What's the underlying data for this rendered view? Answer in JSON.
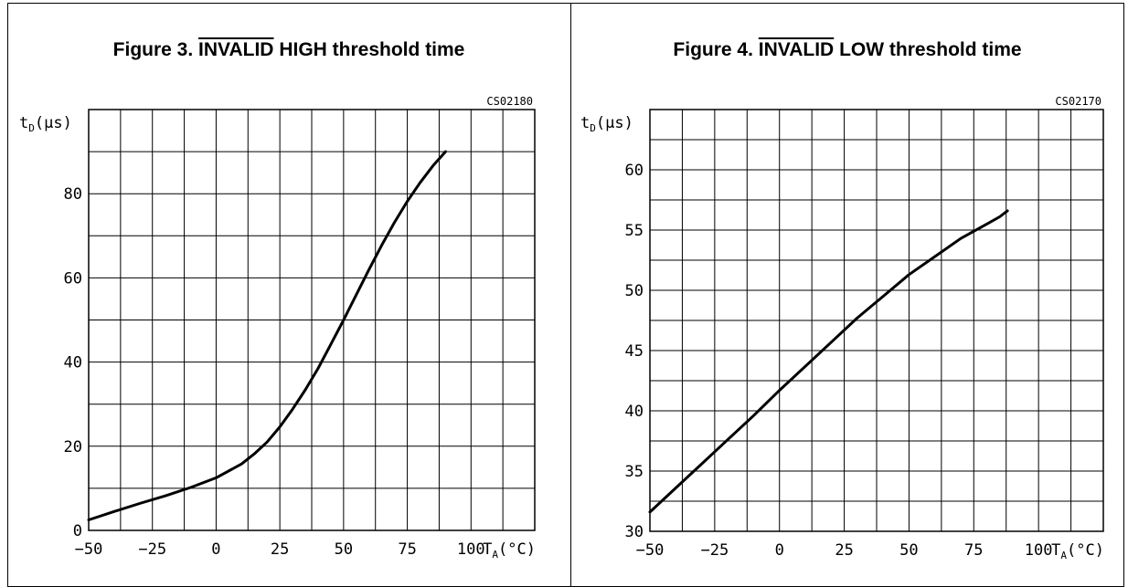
{
  "figures": [
    {
      "label": "Figure 3.",
      "title_overline": "INVALID",
      "title_rest": " HIGH threshold time",
      "ref_code": "CS02180",
      "y_axis_label": {
        "main": "t",
        "sub": "D",
        "unit": "(µs)"
      },
      "x_axis_label": {
        "main": "T",
        "sub": "A",
        "unit": "(°C)"
      }
    },
    {
      "label": "Figure 4.",
      "title_overline": "INVALID",
      "title_rest": " LOW threshold time",
      "ref_code": "CS02170",
      "y_axis_label": {
        "main": "t",
        "sub": "D",
        "unit": "(µs)"
      },
      "x_axis_label": {
        "main": "T",
        "sub": "A",
        "unit": "(°C)"
      }
    }
  ],
  "chart_data": [
    {
      "type": "line",
      "title": "Figure 3. INVALID HIGH threshold time",
      "xlabel": "TA(°C)",
      "ylabel": "tD(µs)",
      "xlim": [
        -50,
        125
      ],
      "ylim": [
        0,
        100
      ],
      "x_ticks": [
        -50,
        -25,
        0,
        25,
        50,
        75,
        100
      ],
      "x_tick_labels": [
        "−50",
        "−25",
        "0",
        "25",
        "50",
        "75",
        "100"
      ],
      "y_ticks": [
        0,
        20,
        40,
        60,
        80
      ],
      "y_tick_labels": [
        "0",
        "20",
        "40",
        "60",
        "80"
      ],
      "x_grid_step": 12.5,
      "y_grid_step": 10,
      "grid": true,
      "series": [
        {
          "x": [
            -50,
            -40,
            -30,
            -20,
            -10,
            0,
            10,
            15,
            20,
            25,
            30,
            35,
            40,
            45,
            50,
            55,
            60,
            65,
            70,
            75,
            80,
            85,
            90
          ],
          "y": [
            2.5,
            4.5,
            6.4,
            8.2,
            10.2,
            12.5,
            15.8,
            18.2,
            21,
            24.6,
            28.8,
            33.4,
            38.5,
            44.2,
            50,
            56,
            62,
            67.8,
            73.2,
            78.2,
            82.6,
            86.6,
            90
          ]
        }
      ]
    },
    {
      "type": "line",
      "title": "Figure 4. INVALID LOW threshold time",
      "xlabel": "TA(°C)",
      "ylabel": "tD(µs)",
      "xlim": [
        -50,
        125
      ],
      "ylim": [
        30,
        65
      ],
      "x_ticks": [
        -50,
        -25,
        0,
        25,
        50,
        75,
        100
      ],
      "x_tick_labels": [
        "−50",
        "−25",
        "0",
        "25",
        "50",
        "75",
        "100"
      ],
      "y_ticks": [
        30,
        35,
        40,
        45,
        50,
        55,
        60
      ],
      "y_tick_labels": [
        "30",
        "35",
        "40",
        "45",
        "50",
        "55",
        "60"
      ],
      "x_grid_step": 12.5,
      "y_grid_step": 2.5,
      "grid": true,
      "series": [
        {
          "x": [
            -50,
            -40,
            -30,
            -20,
            -10,
            0,
            10,
            20,
            30,
            40,
            50,
            60,
            70,
            75,
            80,
            85,
            88
          ],
          "y": [
            31.6,
            33.6,
            35.6,
            37.6,
            39.6,
            41.7,
            43.7,
            45.7,
            47.7,
            49.5,
            51.3,
            52.8,
            54.3,
            54.9,
            55.5,
            56.1,
            56.6
          ]
        }
      ]
    }
  ]
}
